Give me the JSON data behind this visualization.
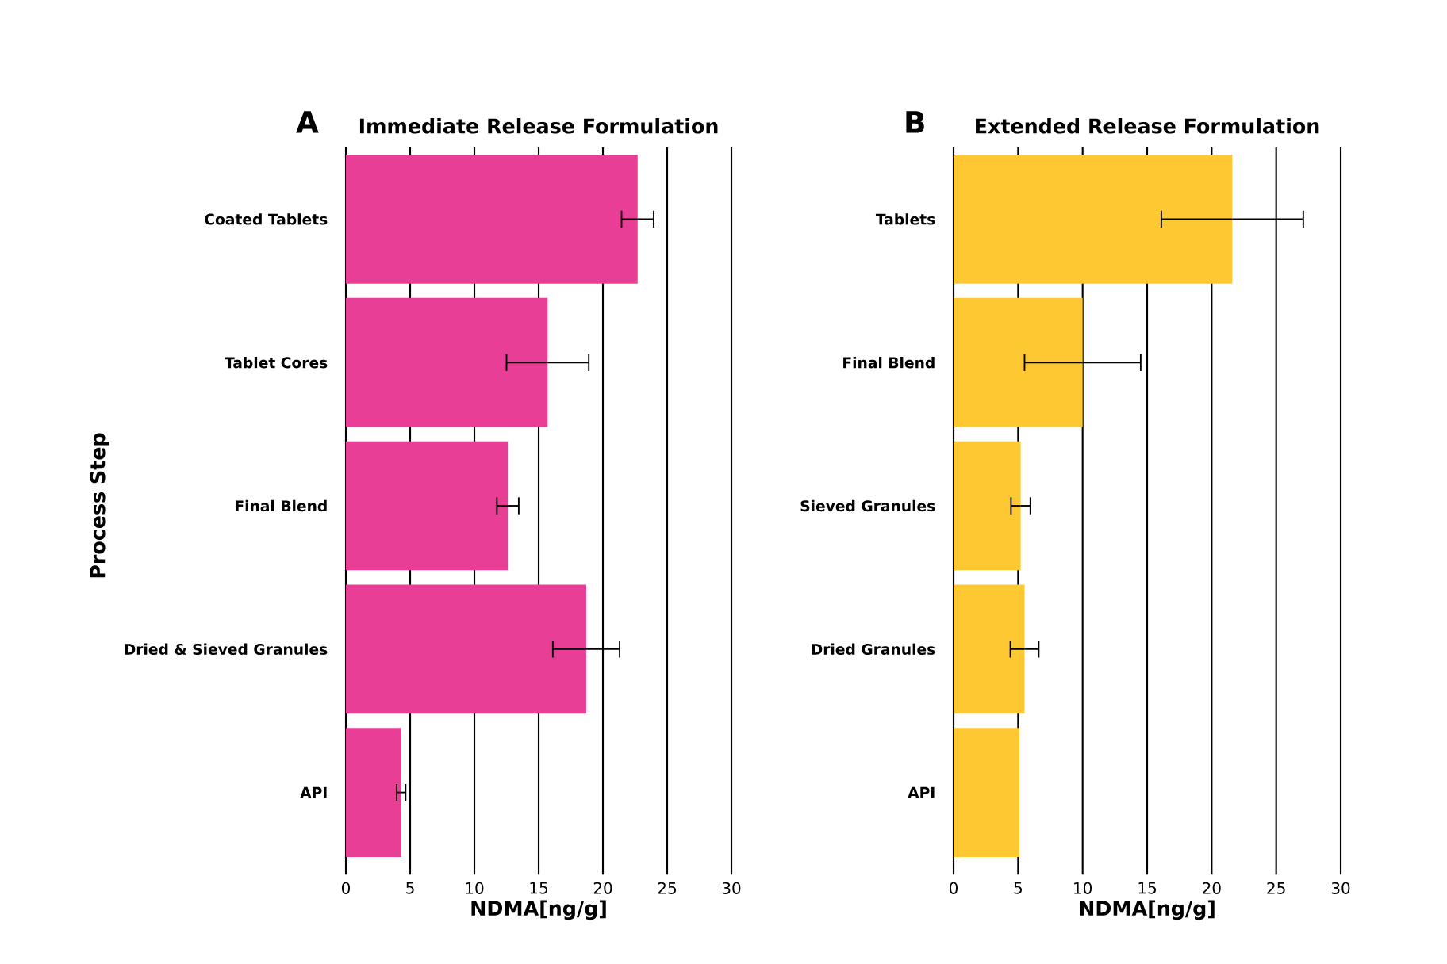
{
  "chart_data": [
    {
      "type": "bar",
      "orientation": "horizontal",
      "title": "Immediate Release Formulation",
      "xlabel": "NDMA[ng/g]",
      "ylabel": "Process Step",
      "annotations": [
        "A"
      ],
      "categories": [
        "Coated Tablets",
        "Tablet Cores",
        "Final Blend",
        "Dried & Sieved Granules",
        "API"
      ],
      "values": [
        22.7,
        15.7,
        12.6,
        18.7,
        4.3
      ],
      "errors": [
        1.25,
        3.2,
        0.85,
        2.6,
        0.35
      ],
      "color": "#e83e96",
      "xlim": [
        0,
        30
      ],
      "xticks": [
        0,
        5,
        10,
        15,
        20,
        25,
        30
      ],
      "grid": "x"
    },
    {
      "type": "bar",
      "orientation": "horizontal",
      "title": "Extended Release Formulation",
      "xlabel": "NDMA[ng/g]",
      "annotations": [
        "B"
      ],
      "categories": [
        "Tablets",
        "Final Blend",
        "Sieved Granules",
        "Dried Granules",
        "API"
      ],
      "values": [
        21.6,
        10.0,
        5.2,
        5.5,
        5.1
      ],
      "errors": [
        5.5,
        4.5,
        0.75,
        1.1,
        null
      ],
      "color": "#fec832",
      "xlim": [
        0,
        30
      ],
      "xticks": [
        0,
        5,
        10,
        15,
        20,
        25,
        30
      ],
      "grid": "x"
    }
  ]
}
